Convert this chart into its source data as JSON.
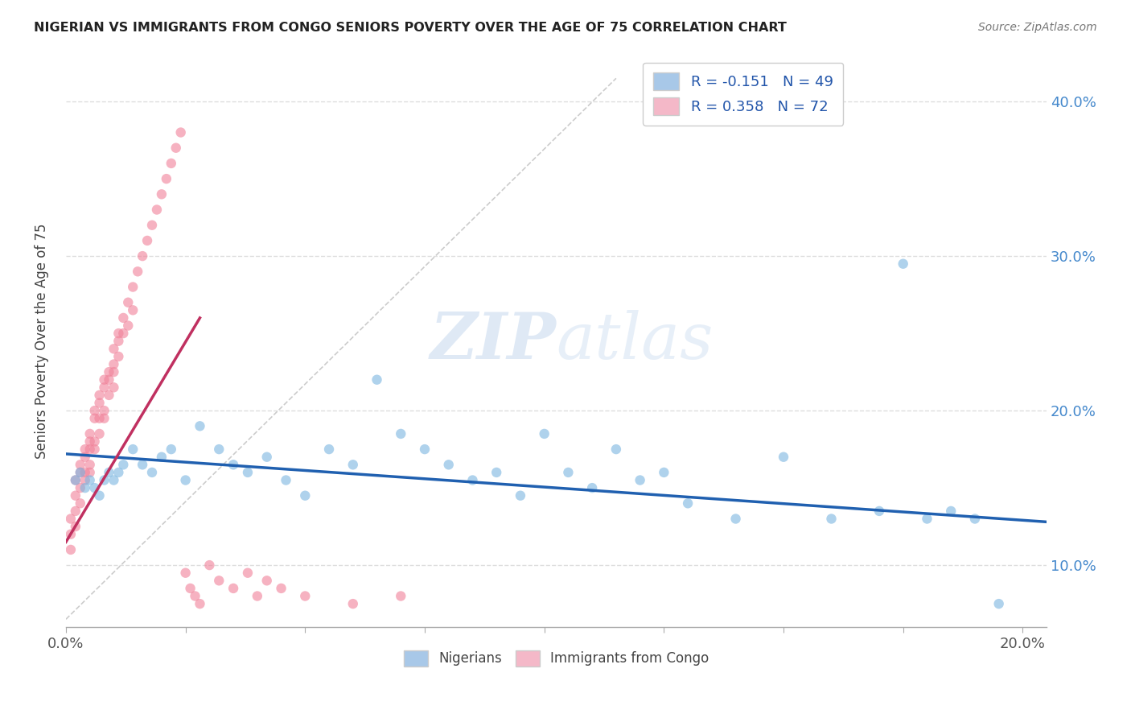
{
  "title": "NIGERIAN VS IMMIGRANTS FROM CONGO SENIORS POVERTY OVER THE AGE OF 75 CORRELATION CHART",
  "source": "Source: ZipAtlas.com",
  "ylabel": "Seniors Poverty Over the Age of 75",
  "xlim": [
    0.0,
    0.205
  ],
  "ylim": [
    0.06,
    0.43
  ],
  "xtick_positions": [
    0.0,
    0.025,
    0.05,
    0.075,
    0.1,
    0.125,
    0.15,
    0.175,
    0.2
  ],
  "xtick_labels": [
    "0.0%",
    "",
    "",
    "",
    "",
    "",
    "",
    "",
    "20.0%"
  ],
  "ytick_positions": [
    0.1,
    0.2,
    0.3,
    0.4
  ],
  "ytick_labels": [
    "10.0%",
    "20.0%",
    "30.0%",
    "40.0%"
  ],
  "watermark": "ZIPatlas",
  "nigerian_color": "#7ab5e0",
  "congo_color": "#f08098",
  "nigerian_line_color": "#2060b0",
  "congo_line_color": "#c03060",
  "diag_color": "#cccccc",
  "background_color": "#ffffff",
  "nigerian_x": [
    0.002,
    0.003,
    0.004,
    0.005,
    0.006,
    0.007,
    0.008,
    0.009,
    0.01,
    0.011,
    0.012,
    0.014,
    0.016,
    0.018,
    0.02,
    0.022,
    0.025,
    0.028,
    0.032,
    0.035,
    0.038,
    0.042,
    0.046,
    0.05,
    0.055,
    0.06,
    0.065,
    0.07,
    0.075,
    0.08,
    0.085,
    0.09,
    0.095,
    0.1,
    0.105,
    0.11,
    0.115,
    0.12,
    0.125,
    0.13,
    0.14,
    0.15,
    0.16,
    0.17,
    0.175,
    0.18,
    0.185,
    0.19,
    0.195
  ],
  "nigerian_y": [
    0.155,
    0.16,
    0.15,
    0.155,
    0.15,
    0.145,
    0.155,
    0.16,
    0.155,
    0.16,
    0.165,
    0.175,
    0.165,
    0.16,
    0.17,
    0.175,
    0.155,
    0.19,
    0.175,
    0.165,
    0.16,
    0.17,
    0.155,
    0.145,
    0.175,
    0.165,
    0.22,
    0.185,
    0.175,
    0.165,
    0.155,
    0.16,
    0.145,
    0.185,
    0.16,
    0.15,
    0.175,
    0.155,
    0.16,
    0.14,
    0.13,
    0.17,
    0.13,
    0.135,
    0.295,
    0.13,
    0.135,
    0.13,
    0.075
  ],
  "congo_x": [
    0.001,
    0.001,
    0.001,
    0.002,
    0.002,
    0.002,
    0.002,
    0.003,
    0.003,
    0.003,
    0.003,
    0.004,
    0.004,
    0.004,
    0.004,
    0.005,
    0.005,
    0.005,
    0.005,
    0.005,
    0.006,
    0.006,
    0.006,
    0.006,
    0.007,
    0.007,
    0.007,
    0.007,
    0.008,
    0.008,
    0.008,
    0.008,
    0.009,
    0.009,
    0.009,
    0.01,
    0.01,
    0.01,
    0.01,
    0.011,
    0.011,
    0.011,
    0.012,
    0.012,
    0.013,
    0.013,
    0.014,
    0.014,
    0.015,
    0.016,
    0.017,
    0.018,
    0.019,
    0.02,
    0.021,
    0.022,
    0.023,
    0.024,
    0.025,
    0.026,
    0.027,
    0.028,
    0.03,
    0.032,
    0.035,
    0.038,
    0.04,
    0.042,
    0.045,
    0.05,
    0.06,
    0.07
  ],
  "congo_y": [
    0.13,
    0.12,
    0.11,
    0.145,
    0.155,
    0.135,
    0.125,
    0.15,
    0.16,
    0.165,
    0.14,
    0.17,
    0.175,
    0.16,
    0.155,
    0.18,
    0.175,
    0.185,
    0.165,
    0.16,
    0.195,
    0.2,
    0.18,
    0.175,
    0.21,
    0.205,
    0.195,
    0.185,
    0.22,
    0.215,
    0.2,
    0.195,
    0.225,
    0.22,
    0.21,
    0.23,
    0.24,
    0.225,
    0.215,
    0.25,
    0.245,
    0.235,
    0.26,
    0.25,
    0.27,
    0.255,
    0.28,
    0.265,
    0.29,
    0.3,
    0.31,
    0.32,
    0.33,
    0.34,
    0.35,
    0.36,
    0.37,
    0.38,
    0.095,
    0.085,
    0.08,
    0.075,
    0.1,
    0.09,
    0.085,
    0.095,
    0.08,
    0.09,
    0.085,
    0.08,
    0.075,
    0.08
  ],
  "nigerian_trend_x": [
    0.0,
    0.205
  ],
  "nigerian_trend_y": [
    0.172,
    0.128
  ],
  "congo_trend_x": [
    0.0,
    0.028
  ],
  "congo_trend_y": [
    0.115,
    0.26
  ]
}
